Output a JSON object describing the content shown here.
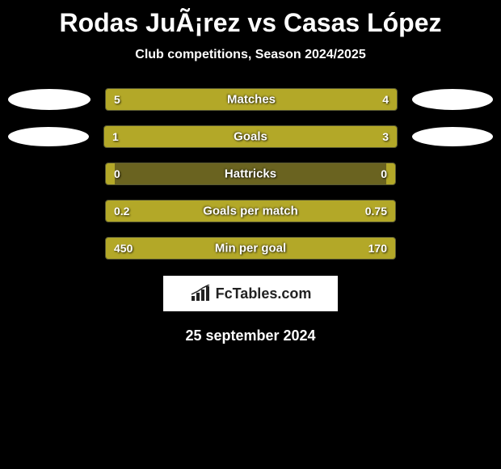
{
  "title": "Rodas JuÃ¡rez vs Casas López",
  "subtitle": "Club competitions, Season 2024/2025",
  "date": "25 september 2024",
  "logo_text": "FcTables.com",
  "colors": {
    "background": "#000000",
    "bar_fill": "#b3a828",
    "bar_bg": "#6a6320",
    "text": "#ffffff",
    "logo_bg": "#ffffff",
    "logo_text": "#222222"
  },
  "badges": {
    "row1": {
      "left_w": 102,
      "left_h": 26,
      "right_w": 100,
      "right_h": 26
    },
    "row2": {
      "left_w": 100,
      "left_h": 24,
      "right_w": 100,
      "right_h": 24
    }
  },
  "stats": [
    {
      "label": "Matches",
      "left_value": "5",
      "right_value": "4",
      "left_pct": 55.6,
      "right_pct": 44.4,
      "show_badges": true,
      "badge_key": "row1"
    },
    {
      "label": "Goals",
      "left_value": "1",
      "right_value": "3",
      "left_pct": 25.0,
      "right_pct": 75.0,
      "show_badges": true,
      "badge_key": "row2"
    },
    {
      "label": "Hattricks",
      "left_value": "0",
      "right_value": "0",
      "left_pct": 3.0,
      "right_pct": 3.0,
      "show_badges": false
    },
    {
      "label": "Goals per match",
      "left_value": "0.2",
      "right_value": "0.75",
      "left_pct": 21.1,
      "right_pct": 78.9,
      "show_badges": false
    },
    {
      "label": "Min per goal",
      "left_value": "450",
      "right_value": "170",
      "left_pct": 72.6,
      "right_pct": 27.4,
      "show_badges": false
    }
  ]
}
